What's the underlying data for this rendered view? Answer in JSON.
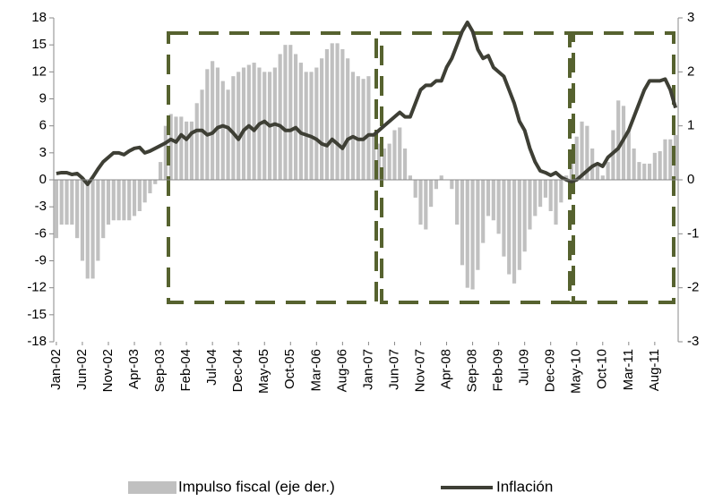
{
  "chart_data": {
    "type": "combo",
    "categories": [
      "Jan-02",
      null,
      null,
      null,
      null,
      "Jun-02",
      null,
      null,
      null,
      null,
      "Nov-02",
      null,
      null,
      null,
      null,
      "Apr-03",
      null,
      null,
      null,
      null,
      "Sep-03",
      null,
      null,
      null,
      null,
      "Feb-04",
      null,
      null,
      null,
      null,
      "Jul-04",
      null,
      null,
      null,
      null,
      "Dec-04",
      null,
      null,
      null,
      null,
      "May-05",
      null,
      null,
      null,
      null,
      "Oct-05",
      null,
      null,
      null,
      null,
      "Mar-06",
      null,
      null,
      null,
      null,
      "Aug-06",
      null,
      null,
      null,
      null,
      "Jan-07",
      null,
      null,
      null,
      null,
      "Jun-07",
      null,
      null,
      null,
      null,
      "Nov-07",
      null,
      null,
      null,
      null,
      "Apr-08",
      null,
      null,
      null,
      null,
      "Sep-08",
      null,
      null,
      null,
      null,
      "Feb-09",
      null,
      null,
      null,
      null,
      "Jul-09",
      null,
      null,
      null,
      null,
      "Dec-09",
      null,
      null,
      null,
      null,
      "May-10",
      null,
      null,
      null,
      null,
      "Oct-10",
      null,
      null,
      null,
      null,
      "Mar-11",
      null,
      null,
      null,
      null,
      "Aug-11",
      null,
      null,
      null,
      null
    ],
    "series": [
      {
        "name": "Impulso fiscal (eje der.)",
        "type": "bar",
        "axis": "y2",
        "color": "#c0c0c0",
        "values": [
          -1.08,
          -0.83,
          -0.83,
          -0.83,
          -1.08,
          -1.5,
          -1.83,
          -1.83,
          -1.5,
          -1.08,
          -0.83,
          -0.75,
          -0.75,
          -0.75,
          -0.75,
          -0.67,
          -0.58,
          -0.42,
          -0.25,
          -0.08,
          0.33,
          1.0,
          1.22,
          1.17,
          1.17,
          1.08,
          1.08,
          1.42,
          1.67,
          2.05,
          2.2,
          2.08,
          1.83,
          1.67,
          1.92,
          2.0,
          2.08,
          2.13,
          2.17,
          2.08,
          2.0,
          2.0,
          2.08,
          2.33,
          2.5,
          2.5,
          2.33,
          2.17,
          2.0,
          2.0,
          2.08,
          2.25,
          2.42,
          2.53,
          2.53,
          2.42,
          2.25,
          2.0,
          1.92,
          1.87,
          1.92,
          0.83,
          0.67,
          0.58,
          0.67,
          0.92,
          0.97,
          0.58,
          0.08,
          -0.33,
          -0.83,
          -0.92,
          -0.5,
          -0.17,
          0.08,
          0,
          -0.17,
          -0.83,
          -1.58,
          -2.0,
          -2.03,
          -1.67,
          -1.17,
          -0.67,
          -0.75,
          -1.0,
          -1.42,
          -1.75,
          -1.92,
          -1.67,
          -1.33,
          -0.92,
          -0.67,
          -0.5,
          -0.33,
          -0.58,
          -0.83,
          -0.42,
          0.08,
          0.33,
          0.8,
          1.08,
          1.0,
          0.58,
          0.25,
          0.08,
          0.33,
          0.92,
          1.47,
          1.37,
          0.92,
          0.58,
          0.33,
          0.3,
          0.3,
          0.5,
          0.53,
          0.75,
          0.75,
          0.83
        ]
      },
      {
        "name": "Inflación",
        "type": "line",
        "color": "#3e3f35",
        "values": [
          0.7,
          0.8,
          0.8,
          0.6,
          0.7,
          0.2,
          -0.5,
          0.3,
          1.2,
          2.0,
          2.5,
          3.0,
          3.0,
          2.8,
          3.2,
          3.5,
          3.6,
          3.0,
          3.2,
          3.5,
          3.8,
          4.1,
          4.5,
          4.2,
          5.0,
          4.5,
          5.2,
          5.5,
          5.5,
          5.0,
          5.2,
          5.8,
          6.0,
          5.8,
          5.2,
          4.5,
          5.5,
          6.0,
          5.5,
          6.2,
          6.5,
          6.0,
          6.2,
          6.0,
          5.5,
          5.5,
          5.8,
          5.2,
          5.0,
          4.8,
          4.5,
          4.0,
          3.8,
          4.5,
          4.0,
          3.5,
          4.5,
          4.8,
          4.5,
          4.5,
          5.0,
          5.0,
          5.5,
          6.0,
          6.5,
          7.0,
          7.5,
          7.0,
          7.0,
          8.5,
          10.0,
          10.5,
          10.5,
          11.0,
          11.0,
          12.5,
          13.5,
          15.0,
          16.5,
          17.5,
          16.5,
          14.5,
          13.5,
          13.8,
          12.5,
          12.0,
          11.5,
          10.0,
          8.5,
          6.5,
          5.5,
          3.5,
          2.0,
          1.0,
          0.8,
          0.5,
          0.8,
          0.3,
          0.0,
          -0.2,
          0.0,
          0.5,
          1.0,
          1.5,
          1.8,
          1.5,
          2.5,
          3.0,
          3.5,
          4.5,
          5.5,
          7.0,
          8.5,
          10.0,
          11.0,
          11.0,
          11.0,
          11.2,
          10.0,
          8.0
        ]
      }
    ],
    "ylim": [
      -18,
      18
    ],
    "yticks": [
      -18,
      -15,
      -12,
      -9,
      -6,
      -3,
      0,
      3,
      6,
      9,
      12,
      15,
      18
    ],
    "y2lim": [
      -3,
      3
    ],
    "y2ticks": [
      -3,
      -2,
      -1,
      0,
      1,
      2,
      3
    ],
    "grid": false,
    "legend": "bottom"
  }
}
